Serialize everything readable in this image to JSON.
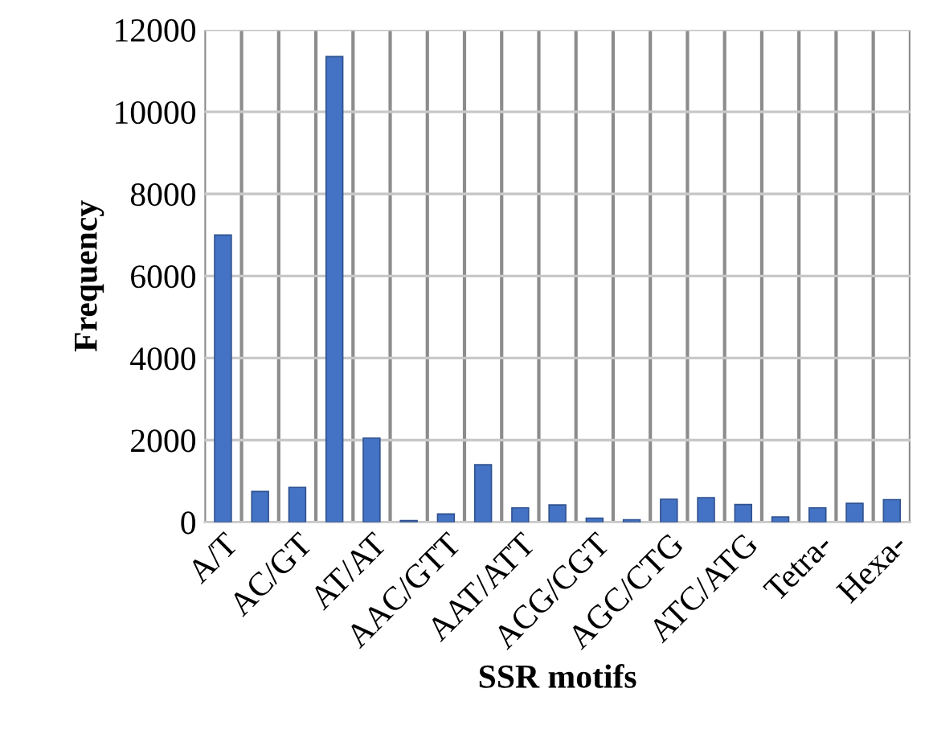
{
  "chart_data": {
    "type": "bar",
    "xlabel": "SSR motifs",
    "ylabel": "Frequency",
    "categories": [
      "A/T",
      null,
      "AC/GT",
      null,
      "AT/AT",
      null,
      "AAC/GTT",
      null,
      "AAT/ATT",
      null,
      "ACG/CGT",
      null,
      "AGC/CTG",
      null,
      "ATC/ATG",
      null,
      "Tetra-",
      null,
      "Hexa-"
    ],
    "values": [
      7000,
      750,
      850,
      11350,
      2050,
      40,
      200,
      1400,
      350,
      420,
      100,
      60,
      560,
      600,
      430,
      130,
      350,
      460,
      550
    ],
    "color": "#4472c4",
    "ylim": [
      0,
      12000
    ],
    "yticks": [
      0,
      2000,
      4000,
      6000,
      8000,
      10000,
      12000
    ],
    "grid": true
  }
}
